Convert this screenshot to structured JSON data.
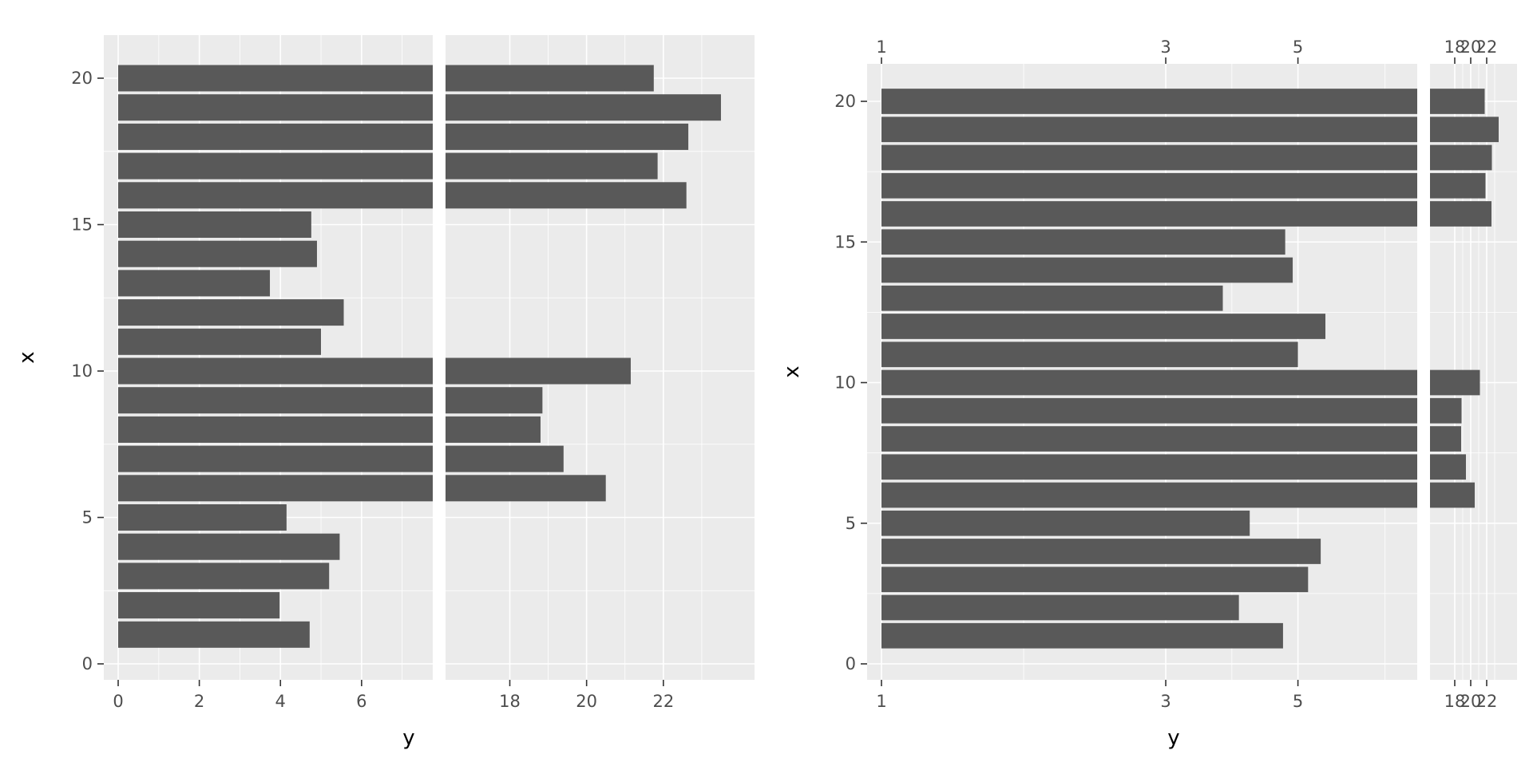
{
  "chart_data": [
    {
      "type": "bar",
      "orientation": "horizontal",
      "xlabel": "y",
      "ylabel": "x",
      "x": [
        1,
        2,
        3,
        4,
        5,
        6,
        7,
        8,
        9,
        10,
        11,
        12,
        13,
        14,
        15,
        16,
        17,
        18,
        19,
        20
      ],
      "values": [
        4.72,
        3.98,
        5.2,
        5.46,
        4.15,
        20.5,
        19.4,
        18.8,
        18.85,
        21.15,
        5.0,
        5.56,
        3.74,
        4.9,
        4.76,
        22.6,
        21.85,
        22.65,
        23.5,
        21.75
      ],
      "y_axis": {
        "range": [
          0,
          21
        ],
        "ticks": [
          0,
          5,
          10,
          15,
          20
        ],
        "tick_labels": [
          "0",
          "5",
          "10",
          "15",
          "20"
        ]
      },
      "x_axis_segments": [
        {
          "range": [
            0,
            7.4
          ],
          "ticks": [
            0,
            2,
            4,
            6
          ],
          "tick_labels": [
            "0",
            "2",
            "4",
            "6"
          ]
        },
        {
          "range": [
            16.7,
            24.0
          ],
          "ticks": [
            18,
            20,
            22
          ],
          "tick_labels": [
            "18",
            "20",
            "22"
          ]
        }
      ],
      "grid": true
    },
    {
      "type": "bar",
      "orientation": "horizontal",
      "xlabel": "y",
      "ylabel": "x",
      "x_scale": "log",
      "x": [
        1,
        2,
        3,
        4,
        5,
        6,
        7,
        8,
        9,
        10,
        11,
        12,
        13,
        14,
        15,
        16,
        17,
        18,
        19,
        20
      ],
      "values": [
        4.72,
        3.98,
        5.2,
        5.46,
        4.15,
        20.5,
        19.4,
        18.8,
        18.85,
        21.15,
        5.0,
        5.56,
        3.74,
        4.9,
        4.76,
        22.6,
        21.85,
        22.65,
        23.5,
        21.75
      ],
      "y_axis": {
        "range": [
          0,
          21
        ],
        "ticks": [
          0,
          5,
          10,
          15,
          20
        ],
        "tick_labels": [
          "0",
          "5",
          "10",
          "15",
          "20"
        ]
      },
      "x_axis_segments": [
        {
          "range": [
            1,
            7.5
          ],
          "ticks": [
            1,
            3,
            5
          ],
          "tick_labels": [
            "1",
            "3",
            "5"
          ]
        },
        {
          "range": [
            16.7,
            24.0
          ],
          "ticks": [
            18,
            20,
            22
          ],
          "tick_labels": [
            "18",
            "20",
            "22"
          ]
        }
      ],
      "secondary_x_axis": "top",
      "grid": true
    }
  ]
}
